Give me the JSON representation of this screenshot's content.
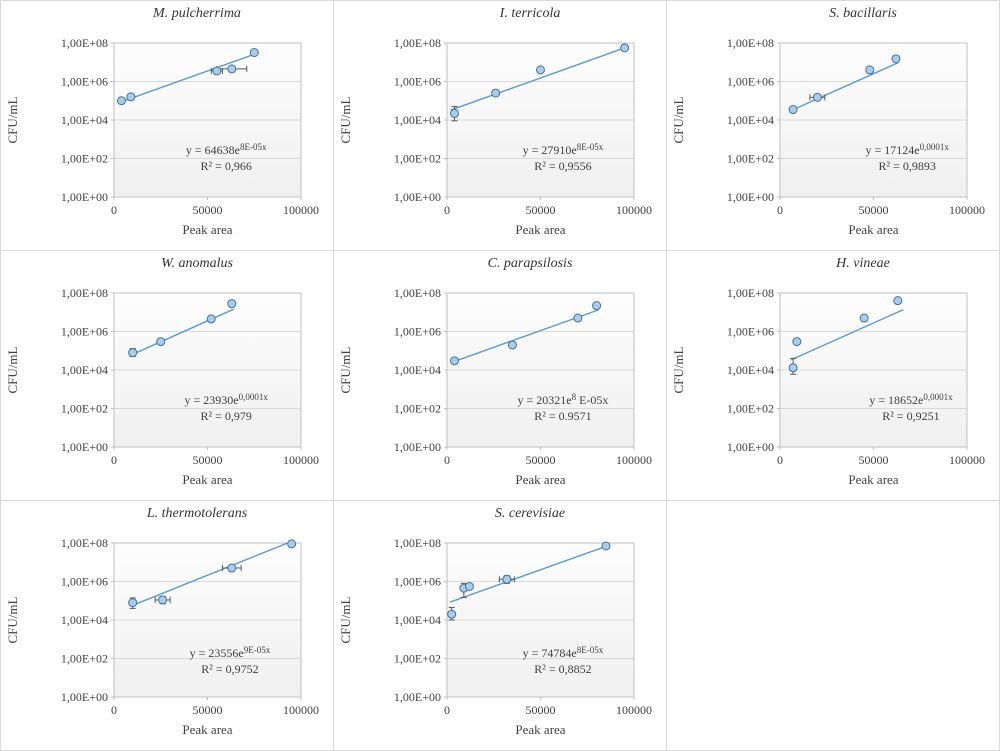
{
  "style": {
    "marker_fill": "#a9cce9",
    "marker_stroke": "#41719c",
    "trend_color": "#5b9bd5",
    "error_color": "#595959",
    "gridline_color": "#d9d9d9",
    "plot_border_color": "#bfbfbf",
    "text_color": "#404040",
    "title_color": "#333333",
    "cell_border_color": "#d9d9d9",
    "plot_bg_top": "#fdfdfd",
    "plot_bg_bottom": "#f0f0f0"
  },
  "axes": {
    "xmax": 100000,
    "xticks": [
      {
        "v": 0,
        "label": "0"
      },
      {
        "v": 50000,
        "label": "50000"
      },
      {
        "v": 100000,
        "label": "100000"
      }
    ],
    "yticks": [
      {
        "e": 8,
        "label": "1,00E+08"
      },
      {
        "e": 6,
        "label": "1,00E+06"
      },
      {
        "e": 4,
        "label": "1,00E+04"
      },
      {
        "e": 2,
        "label": "1,00E+02"
      },
      {
        "e": 0,
        "label": "1,00E+00"
      }
    ],
    "y_log_exponent_range": [
      0,
      8
    ]
  },
  "chart_data": [
    {
      "type": "scatter",
      "title": "M. pulcherrima",
      "xlabel": "Peak area",
      "ylabel": "CFU/mL",
      "xlim": [
        0,
        100000
      ],
      "ylim_log": [
        1,
        100000000
      ],
      "points": [
        {
          "x": 4000,
          "y": 100000.0
        },
        {
          "x": 9000,
          "y": 160000.0
        },
        {
          "x": 55000,
          "y": 3500000.0,
          "xerr": 3000
        },
        {
          "x": 63000,
          "y": 4500000.0,
          "xerr": 8000
        },
        {
          "x": 75000,
          "y": 32000000.0
        }
      ],
      "fit": {
        "a": 64638,
        "b": 8e-05
      },
      "trend_x": [
        3000,
        76000
      ],
      "equation": {
        "base": "y = 64638e",
        "sup": "8E-05x",
        "tail": ""
      },
      "r2": "R² = 0,966",
      "ann": {
        "fx": 0.6,
        "fy": 0.72
      }
    },
    {
      "type": "scatter",
      "title": "I. terricola",
      "xlabel": "Peak area",
      "ylabel": "CFU/mL",
      "xlim": [
        0,
        100000
      ],
      "ylim_log": [
        1,
        100000000
      ],
      "points": [
        {
          "x": 4000,
          "y": 22000.0,
          "ylo": 9000.0,
          "yhi": 50000.0
        },
        {
          "x": 26000,
          "y": 250000.0
        },
        {
          "x": 50000,
          "y": 4000000.0
        },
        {
          "x": 95000,
          "y": 56000000.0
        }
      ],
      "fit": {
        "a": 27910,
        "b": 8e-05
      },
      "trend_x": [
        2000,
        96000
      ],
      "equation": {
        "base": "y = 27910e",
        "sup": "8E-05x",
        "tail": ""
      },
      "r2": "R² = 0,9556",
      "ann": {
        "fx": 0.62,
        "fy": 0.72
      }
    },
    {
      "type": "scatter",
      "title": "S. bacillaris",
      "xlabel": "Peak area",
      "ylabel": "CFU/mL",
      "xlim": [
        0,
        100000
      ],
      "ylim_log": [
        1,
        100000000
      ],
      "points": [
        {
          "x": 7000,
          "y": 35000.0
        },
        {
          "x": 20000,
          "y": 150000.0,
          "xerr": 4000
        },
        {
          "x": 48000,
          "y": 4000000.0
        },
        {
          "x": 62000,
          "y": 15000000.0
        }
      ],
      "fit": {
        "a": 17124,
        "b": 0.0001
      },
      "trend_x": [
        6000,
        63000
      ],
      "equation": {
        "base": "y = 17124e",
        "sup": "0,0001x",
        "tail": ""
      },
      "r2": "R² = 0,9893",
      "ann": {
        "fx": 0.68,
        "fy": 0.72
      }
    },
    {
      "type": "scatter",
      "title": "W. anomalus",
      "xlabel": "Peak area",
      "ylabel": "CFU/mL",
      "xlim": [
        0,
        100000
      ],
      "ylim_log": [
        1,
        100000000
      ],
      "points": [
        {
          "x": 10000,
          "y": 80000.0,
          "ylo": 50000.0,
          "yhi": 130000.0
        },
        {
          "x": 25000,
          "y": 300000.0
        },
        {
          "x": 52000,
          "y": 4500000.0
        },
        {
          "x": 63000,
          "y": 28000000.0
        }
      ],
      "fit": {
        "a": 23930,
        "b": 0.0001
      },
      "trend_x": [
        9000,
        64000
      ],
      "equation": {
        "base": "y = 23930e",
        "sup": "0,0001x",
        "tail": ""
      },
      "r2": "R² = 0,979",
      "ann": {
        "fx": 0.6,
        "fy": 0.72
      }
    },
    {
      "type": "scatter",
      "title": "C. parapsilosis",
      "xlabel": "Peak area",
      "ylabel": "CFU/mL",
      "xlim": [
        0,
        100000
      ],
      "ylim_log": [
        1,
        100000000
      ],
      "points": [
        {
          "x": 4000,
          "y": 30000.0
        },
        {
          "x": 35000,
          "y": 200000.0
        },
        {
          "x": 70000,
          "y": 5000000.0
        },
        {
          "x": 80000,
          "y": 22000000.0
        }
      ],
      "fit": {
        "a": 20321,
        "b": 8e-05
      },
      "trend_x": [
        3000,
        81000
      ],
      "equation": {
        "base": "y = 20321e",
        "sup": "8",
        "tail": " E-05x"
      },
      "r2": "R² = 0.9571",
      "ann": {
        "fx": 0.62,
        "fy": 0.72
      }
    },
    {
      "type": "scatter",
      "title": "H. vineae",
      "xlabel": "Peak area",
      "ylabel": "CFU/mL",
      "xlim": [
        0,
        100000
      ],
      "ylim_log": [
        1,
        100000000
      ],
      "points": [
        {
          "x": 7000,
          "y": 13000.0,
          "ylo": 6000.0,
          "yhi": 40000.0
        },
        {
          "x": 9000,
          "y": 300000.0
        },
        {
          "x": 45000,
          "y": 5000000.0
        },
        {
          "x": 63000,
          "y": 40000000.0
        }
      ],
      "fit": {
        "a": 18652,
        "b": 0.0001
      },
      "trend_x": [
        6000,
        66000
      ],
      "equation": {
        "base": "y = 18652e",
        "sup": "0,0001x",
        "tail": ""
      },
      "r2": "R² = 0,9251",
      "ann": {
        "fx": 0.7,
        "fy": 0.72
      }
    },
    {
      "type": "scatter",
      "title": "L. thermotolerans",
      "xlabel": "Peak area",
      "ylabel": "CFU/mL",
      "xlim": [
        0,
        100000
      ],
      "ylim_log": [
        1,
        100000000
      ],
      "points": [
        {
          "x": 10000,
          "y": 80000.0,
          "ylo": 40000.0,
          "yhi": 140000.0
        },
        {
          "x": 26000,
          "y": 110000.0,
          "xerr": 4000,
          "ylo": 70000.0,
          "yhi": 170000.0
        },
        {
          "x": 63000,
          "y": 5000000.0,
          "xerr": 5000
        },
        {
          "x": 95000,
          "y": 90000000.0
        }
      ],
      "fit": {
        "a": 23556,
        "b": 9e-05
      },
      "trend_x": [
        9000,
        95000
      ],
      "equation": {
        "base": "y = 23556e",
        "sup": "9E-05x",
        "tail": ""
      },
      "r2": "R² = 0,9752",
      "ann": {
        "fx": 0.62,
        "fy": 0.74
      }
    },
    {
      "type": "scatter",
      "title": "S. cerevisiae",
      "xlabel": "Peak area",
      "ylabel": "CFU/mL",
      "xlim": [
        0,
        100000
      ],
      "ylim_log": [
        1,
        100000000
      ],
      "points": [
        {
          "x": 2500,
          "y": 20000.0,
          "ylo": 10000.0,
          "yhi": 45000.0
        },
        {
          "x": 9000,
          "y": 450000.0,
          "ylo": 150000.0,
          "yhi": 800000.0
        },
        {
          "x": 12000,
          "y": 550000.0
        },
        {
          "x": 32000,
          "y": 1300000.0,
          "xerr": 4000,
          "ylo": 800000.0,
          "yhi": 2000000.0
        },
        {
          "x": 85000,
          "y": 70000000.0
        }
      ],
      "fit": {
        "a": 74784,
        "b": 8e-05
      },
      "trend_x": [
        1500,
        86000
      ],
      "equation": {
        "base": "y = 74784e",
        "sup": "8E-05x",
        "tail": ""
      },
      "r2": "R² = 0,8852",
      "ann": {
        "fx": 0.62,
        "fy": 0.74
      }
    }
  ]
}
